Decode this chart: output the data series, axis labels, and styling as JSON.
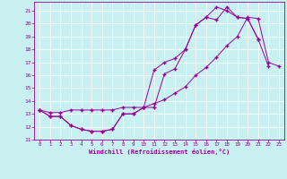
{
  "xlabel": "Windchill (Refroidissement éolien,°C)",
  "bg_color": "#c8f0f0",
  "grid_color": "#ffffff",
  "line_color": "#990099",
  "xlim": [
    -0.5,
    23.5
  ],
  "ylim": [
    11,
    21.7
  ],
  "xticks": [
    0,
    1,
    2,
    3,
    4,
    5,
    6,
    7,
    8,
    9,
    10,
    11,
    12,
    13,
    14,
    15,
    16,
    17,
    18,
    19,
    20,
    21,
    22,
    23
  ],
  "yticks": [
    11,
    12,
    13,
    14,
    15,
    16,
    17,
    18,
    19,
    20,
    21
  ],
  "line1_y": [
    13.3,
    12.8,
    12.8,
    12.1,
    11.8,
    11.65,
    11.65,
    11.8,
    13.0,
    13.0,
    13.5,
    13.5,
    16.1,
    16.5,
    18.0,
    19.9,
    20.5,
    20.3,
    21.3,
    20.5,
    20.4,
    18.8,
    null,
    null
  ],
  "line2_y": [
    13.3,
    12.8,
    12.8,
    12.1,
    11.8,
    11.65,
    11.65,
    11.8,
    13.0,
    13.0,
    13.5,
    16.4,
    17.0,
    17.3,
    18.0,
    19.9,
    20.5,
    21.3,
    21.0,
    20.5,
    20.4,
    18.8,
    16.7,
    null
  ],
  "line3_y": [
    13.3,
    13.1,
    13.1,
    13.3,
    13.3,
    13.3,
    13.3,
    13.3,
    13.5,
    13.5,
    13.5,
    13.8,
    14.1,
    14.6,
    15.1,
    16.0,
    16.6,
    17.4,
    18.3,
    19.0,
    20.5,
    20.4,
    17.0,
    16.7
  ]
}
